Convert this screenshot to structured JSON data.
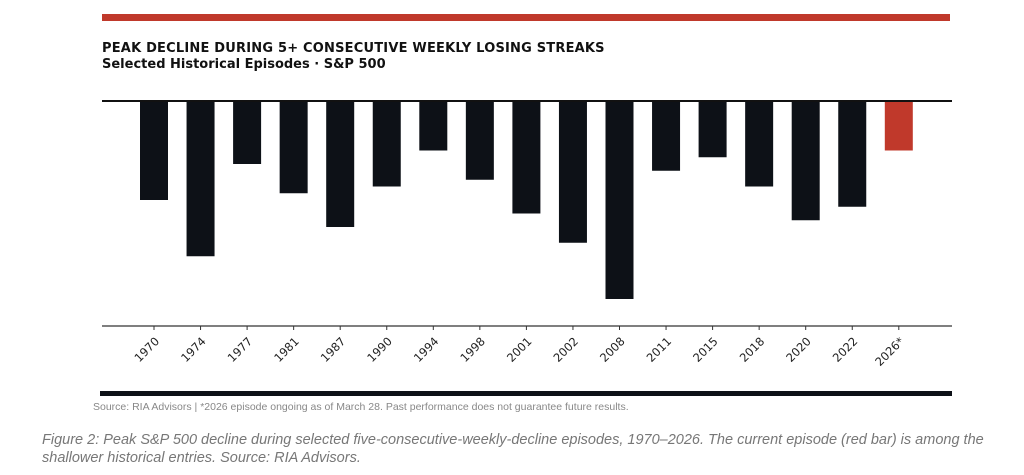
{
  "chart_data": {
    "type": "bar",
    "title": "PEAK DECLINE DURING 5+ CONSECUTIVE WEEKLY LOSING STREAKS",
    "subtitle": "Selected Historical Episodes  ·  S&P 500",
    "categories": [
      "1970",
      "1974",
      "1977",
      "1981",
      "1987",
      "1990",
      "1994",
      "1998",
      "2001",
      "2002",
      "2008",
      "2011",
      "2015",
      "2018",
      "2020",
      "2022",
      "2026*"
    ],
    "values": [
      -0.44,
      -0.69,
      -0.28,
      -0.41,
      -0.56,
      -0.38,
      -0.22,
      -0.35,
      -0.5,
      -0.63,
      -0.88,
      -0.31,
      -0.25,
      -0.38,
      -0.53,
      -0.47,
      -0.22
    ],
    "value_note": "relative depth only; y-axis unlabeled",
    "ylim": [
      -1,
      0
    ],
    "xlabel": "",
    "ylabel": "",
    "grid": false,
    "highlight_category": "2026*",
    "colors": {
      "bar": "#0d1117",
      "highlight": "#c0392b",
      "accent_bar": "#c0392b"
    }
  },
  "footer": {
    "source": "Source: RIA Advisors  |  *2026 episode ongoing as of March 28. Past performance does not guarantee future results.",
    "caption": "Figure 2: Peak S&P 500 decline during selected five-consecutive-weekly-decline episodes, 1970–2026. The current episode (red bar) is among the shallower historical entries. Source: RIA Advisors."
  }
}
